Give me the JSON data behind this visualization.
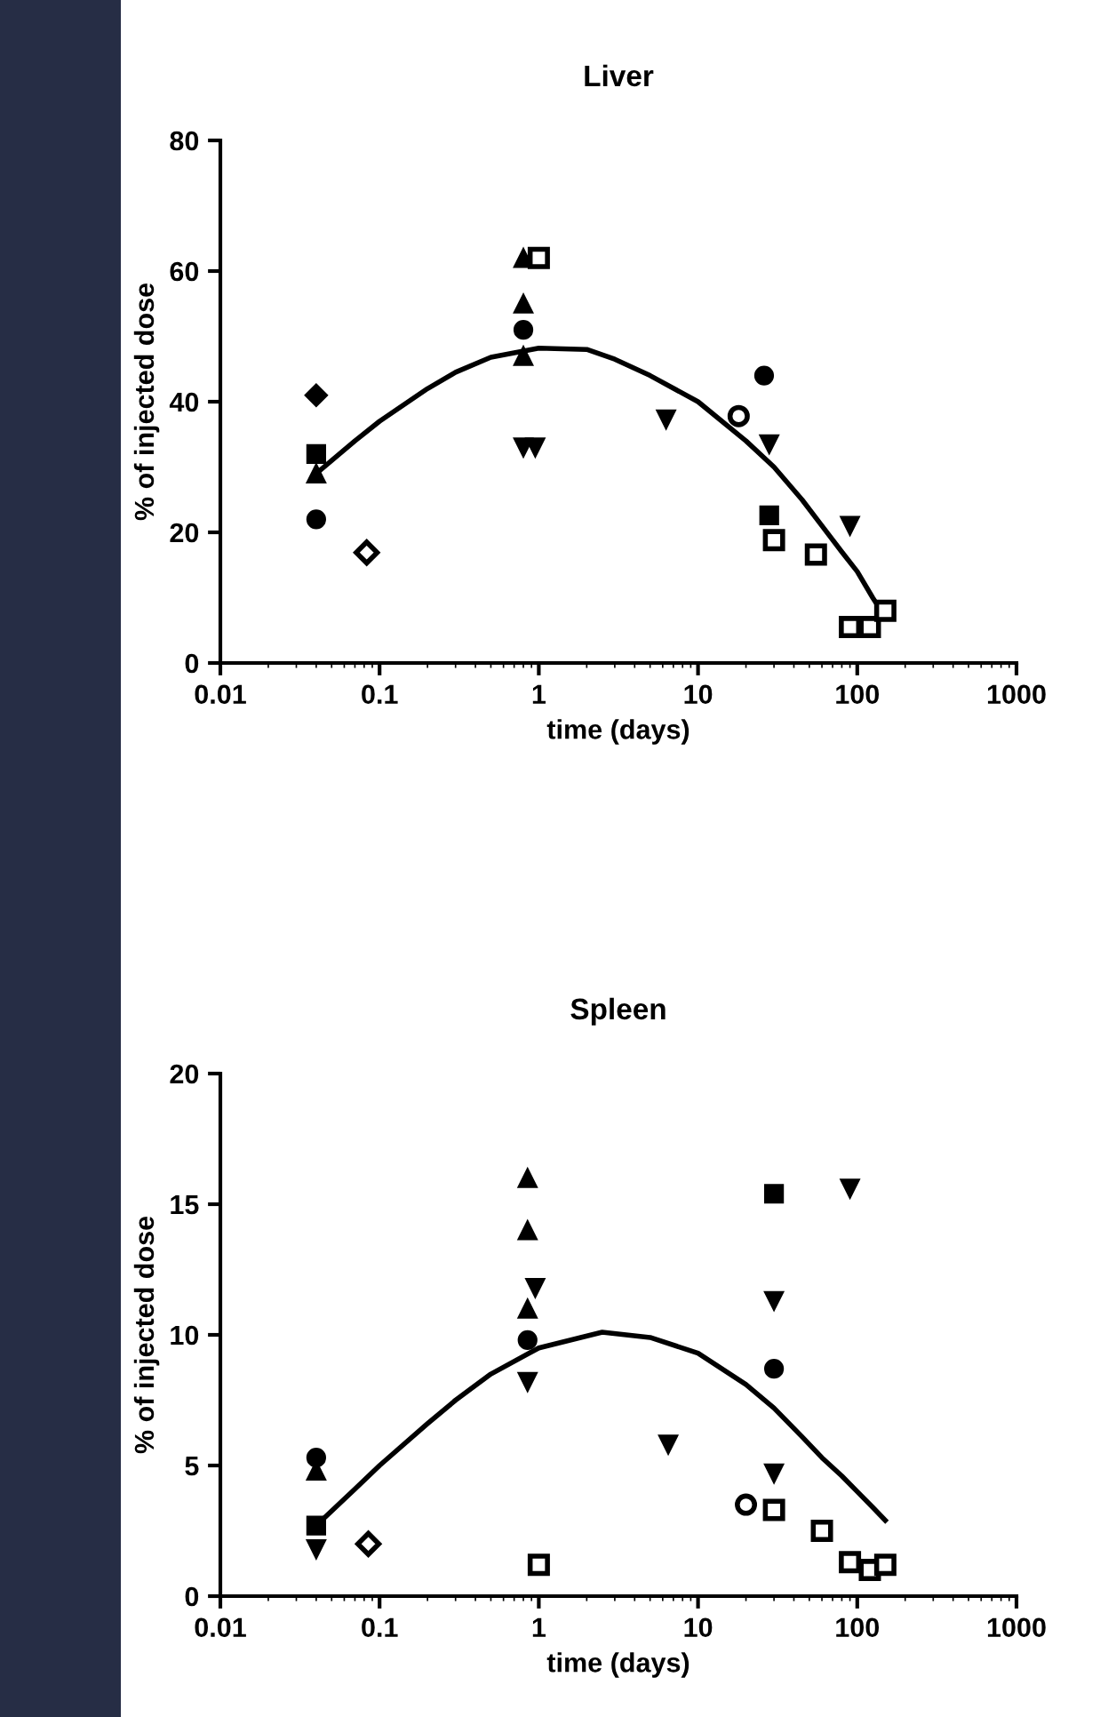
{
  "chart_data": [
    {
      "type": "scatter",
      "title": "Liver",
      "xlabel": "time (days)",
      "ylabel": "% of injected dose",
      "log": "x",
      "xlim": [
        0.01,
        1000
      ],
      "xticks": [
        0.01,
        0.1,
        1,
        10,
        100,
        1000
      ],
      "ylim": [
        0,
        80
      ],
      "yticks": [
        0,
        20,
        40,
        60,
        80
      ],
      "grid": false,
      "legend": false,
      "series": [
        {
          "marker": "circle",
          "color": "#000000",
          "x": [
            0.04,
            0.8,
            26
          ],
          "values": [
            22,
            51,
            44
          ]
        },
        {
          "marker": "square",
          "color": "#000000",
          "x": [
            0.04,
            28
          ],
          "values": [
            32,
            22.6
          ]
        },
        {
          "marker": "triangle",
          "color": "#000000",
          "x": [
            0.04,
            0.8,
            0.8,
            0.8
          ],
          "values": [
            29,
            62,
            55,
            47
          ]
        },
        {
          "marker": "triangle_down",
          "color": "#000000",
          "x": [
            0.8,
            0.95,
            6.3,
            28,
            90
          ],
          "values": [
            33,
            33,
            37.3,
            33.5,
            21
          ]
        },
        {
          "marker": "diamond",
          "color": "#000000",
          "x": [
            0.04
          ],
          "values": [
            41
          ]
        },
        {
          "marker": "circle",
          "color": "#ffffff",
          "x": [
            18
          ],
          "values": [
            37.8
          ]
        },
        {
          "marker": "square",
          "color": "#ffffff",
          "x": [
            1,
            30,
            55,
            90,
            120,
            150
          ],
          "values": [
            62,
            18.8,
            16.6,
            5.5,
            5.5,
            8
          ]
        },
        {
          "marker": "diamond",
          "color": "#ffffff",
          "x": [
            0.083
          ],
          "values": [
            16.9
          ]
        },
        {
          "type": "line",
          "marker": "none",
          "color": "#000000",
          "x": [
            0.04,
            0.07,
            0.1,
            0.2,
            0.3,
            0.5,
            1,
            2,
            3,
            5,
            10,
            20,
            30,
            45,
            60,
            80,
            100,
            125,
            150
          ],
          "values": [
            29,
            34,
            37,
            42,
            44.5,
            46.8,
            48.2,
            48,
            46.5,
            44,
            40,
            34,
            30,
            25,
            21,
            17,
            14,
            10,
            7
          ]
        }
      ]
    },
    {
      "type": "scatter",
      "title": "Spleen",
      "xlabel": "time (days)",
      "ylabel": "% of injected dose",
      "log": "x",
      "xlim": [
        0.01,
        1000
      ],
      "xticks": [
        0.01,
        0.1,
        1,
        10,
        100,
        1000
      ],
      "ylim": [
        0,
        20
      ],
      "yticks": [
        0,
        5,
        10,
        15,
        20
      ],
      "grid": false,
      "legend": false,
      "series": [
        {
          "marker": "circle",
          "color": "#000000",
          "x": [
            0.04,
            0.85,
            30
          ],
          "values": [
            5.3,
            9.8,
            8.7
          ]
        },
        {
          "marker": "square",
          "color": "#000000",
          "x": [
            0.04,
            30
          ],
          "values": [
            2.7,
            15.4
          ]
        },
        {
          "marker": "triangle",
          "color": "#000000",
          "x": [
            0.04,
            0.85,
            0.85,
            0.85
          ],
          "values": [
            4.8,
            16,
            14,
            11
          ]
        },
        {
          "marker": "triangle_down",
          "color": "#000000",
          "x": [
            0.04,
            0.95,
            0.85,
            6.5,
            30,
            30,
            90
          ],
          "values": [
            1.8,
            11.8,
            8.2,
            5.8,
            11.3,
            4.7,
            15.6
          ]
        },
        {
          "marker": "circle",
          "color": "#ffffff",
          "x": [
            20
          ],
          "values": [
            3.5
          ]
        },
        {
          "marker": "square",
          "color": "#ffffff",
          "x": [
            1,
            30,
            60,
            90,
            120,
            150
          ],
          "values": [
            1.2,
            3.3,
            2.5,
            1.3,
            1.0,
            1.2
          ]
        },
        {
          "marker": "diamond",
          "color": "#ffffff",
          "x": [
            0.085
          ],
          "values": [
            2.0
          ]
        },
        {
          "type": "line",
          "marker": "none",
          "color": "#000000",
          "x": [
            0.04,
            0.07,
            0.1,
            0.2,
            0.3,
            0.5,
            1,
            2.5,
            5,
            10,
            20,
            30,
            45,
            60,
            80,
            100,
            125,
            150
          ],
          "values": [
            2.7,
            4.1,
            5.0,
            6.6,
            7.5,
            8.5,
            9.5,
            10.1,
            9.9,
            9.3,
            8.1,
            7.2,
            6.1,
            5.3,
            4.6,
            4.0,
            3.4,
            2.9
          ]
        }
      ]
    }
  ]
}
